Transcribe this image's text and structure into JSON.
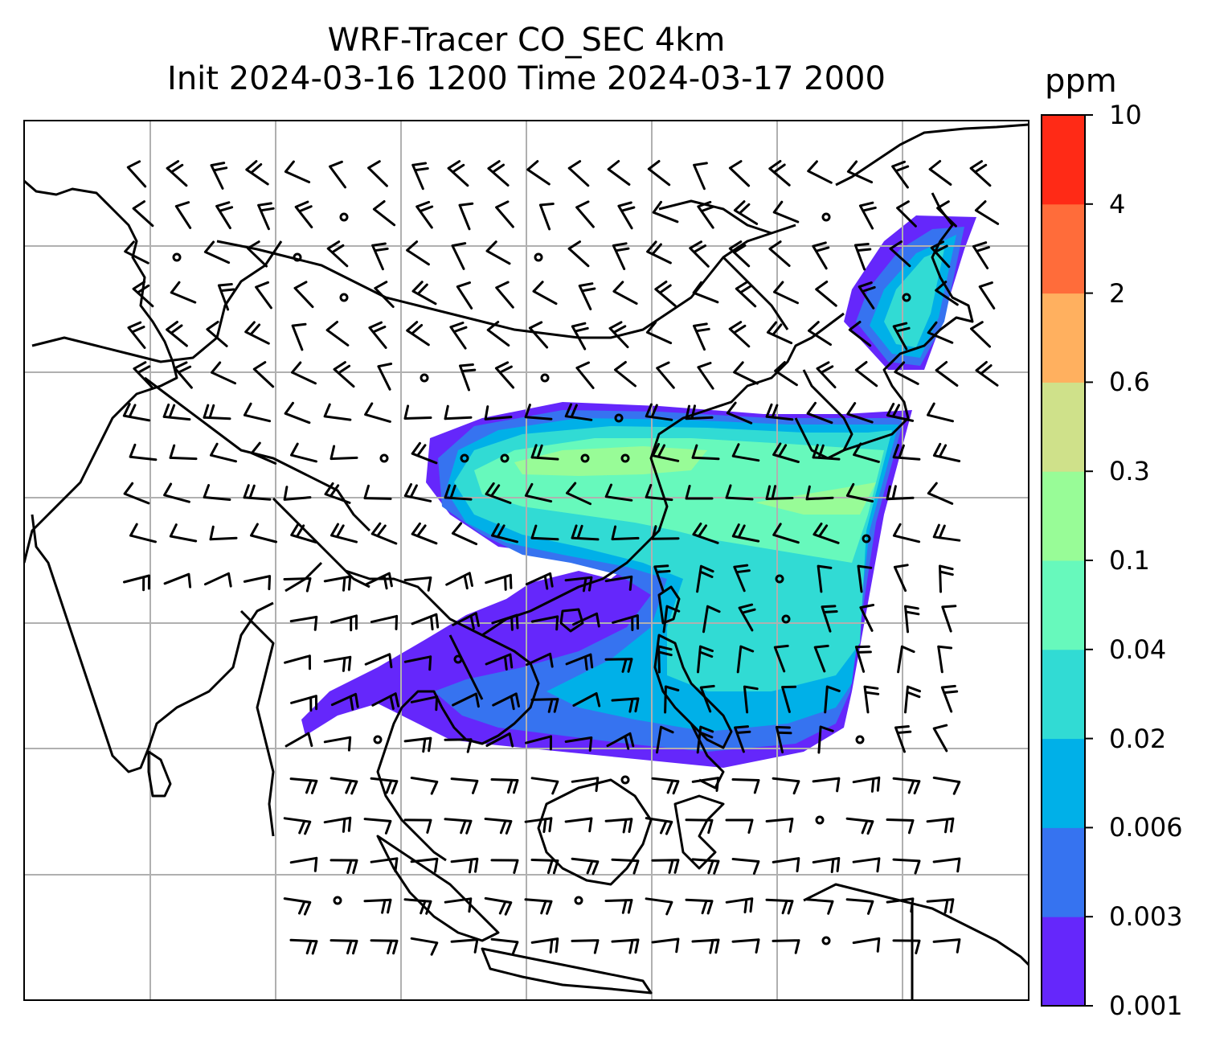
{
  "title": {
    "line1": "WRF-Tracer CO_SEC 4km",
    "line2": "Init 2024-03-16 1200 Time 2024-03-17 2000"
  },
  "colorbar": {
    "units": "ppm",
    "levels": [
      "0.001",
      "0.003",
      "0.006",
      "0.02",
      "0.04",
      "0.1",
      "0.3",
      "0.6",
      "2",
      "4",
      "10"
    ],
    "colors": [
      "#6527fb",
      "#3673f0",
      "#00b0e8",
      "#31dbd4",
      "#67f9bc",
      "#98fc97",
      "#cfe18a",
      "#ffb05f",
      "#ff6c3a",
      "#ff2a16"
    ]
  },
  "map": {
    "gridlines": true,
    "plume": {
      "levels_present": [
        "0.001",
        "0.003",
        "0.006",
        "0.02",
        "0.04",
        "0.1",
        "0.3"
      ]
    },
    "wind_barbs": true,
    "line_color": "#000000",
    "grid_color": "#b0b0b0"
  }
}
